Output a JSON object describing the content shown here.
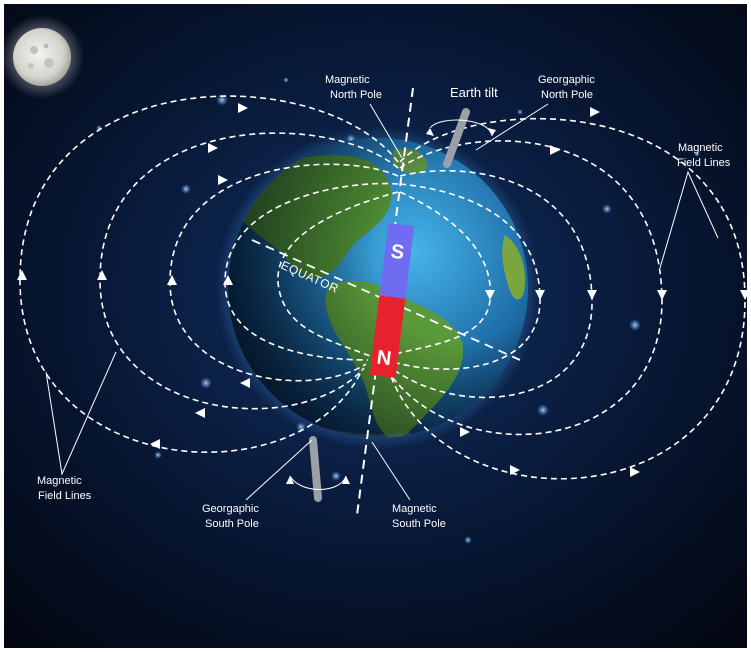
{
  "labels": {
    "magnetic_north_pole": [
      "Magnetic",
      "North Pole"
    ],
    "earth_tilt": "Earth tilt",
    "geographic_north_pole": [
      "Georgaphic",
      "North Pole"
    ],
    "field_lines_right": [
      "Magnetic",
      "Field Lines"
    ],
    "field_lines_left": [
      "Magnetic",
      "Field Lines"
    ],
    "equator": "EQUATOR",
    "geographic_south_pole": [
      "Georgaphic",
      "South Pole"
    ],
    "magnetic_south_pole": [
      "Magnetic",
      "South Pole"
    ],
    "magnet_south": "S",
    "magnet_north": "N"
  },
  "colors": {
    "background": "#050b1e",
    "magnet_south": "#6f6cf2",
    "magnet_north": "#e8222c",
    "ocean": "#2d7fb8",
    "land": "#5f9b3a",
    "field_line": "#ffffff"
  }
}
